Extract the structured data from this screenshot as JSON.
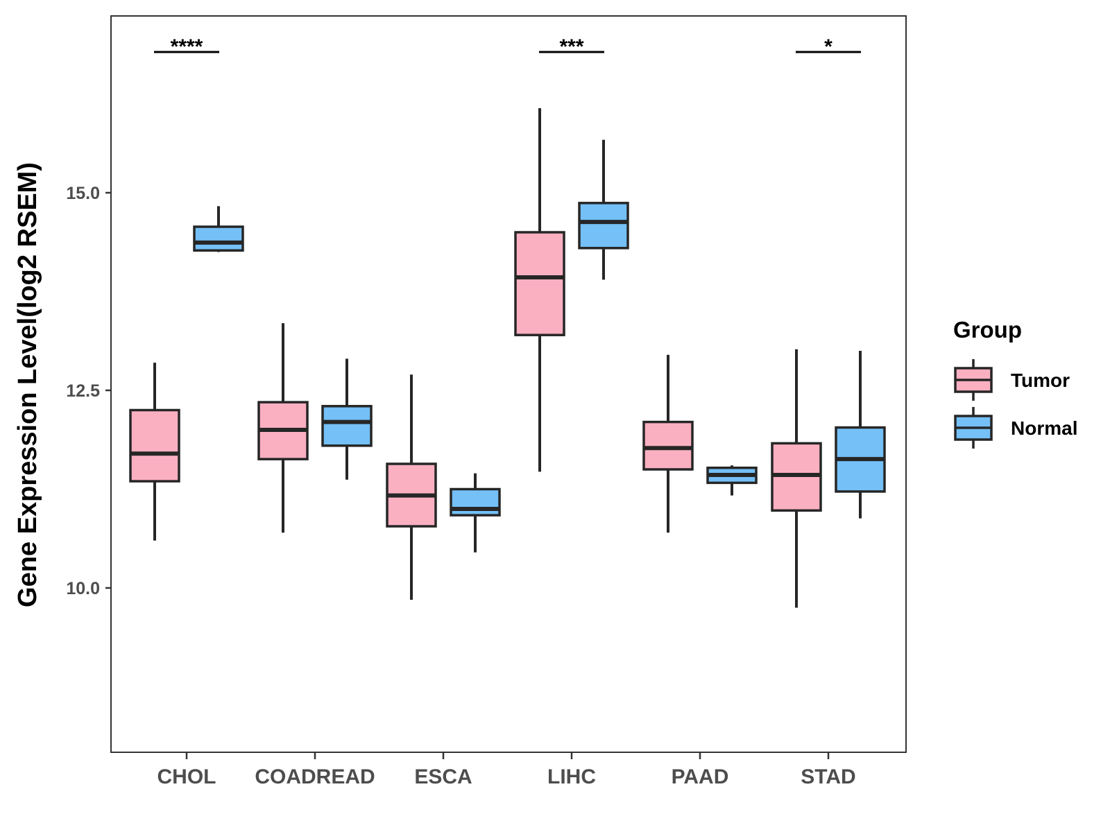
{
  "chart_data": {
    "type": "boxplot",
    "title": "",
    "xlabel": "",
    "ylabel": "Gene Expression Level(log2 RSEM)",
    "ylim": [
      8.0,
      17.3
    ],
    "yticks": [
      10.0,
      12.5,
      15.0
    ],
    "ytick_labels": [
      "10.0",
      "12.5",
      "15.0"
    ],
    "grid": false,
    "categories": [
      "CHOL",
      "COADREAD",
      "ESCA",
      "LIHC",
      "PAAD",
      "STAD"
    ],
    "legend": {
      "title": "Group",
      "position": "right",
      "entries": [
        "Tumor",
        "Normal"
      ]
    },
    "series": [
      {
        "name": "Tumor",
        "color": "#fbb0c2",
        "boxes": [
          {
            "category": "CHOL",
            "whisker_low": 10.6,
            "q1": 11.35,
            "median": 11.7,
            "q3": 12.25,
            "whisker_high": 12.85
          },
          {
            "category": "COADREAD",
            "whisker_low": 10.7,
            "q1": 11.63,
            "median": 12.0,
            "q3": 12.35,
            "whisker_high": 13.35
          },
          {
            "category": "ESCA",
            "whisker_low": 9.85,
            "q1": 10.78,
            "median": 11.17,
            "q3": 11.57,
            "whisker_high": 12.7
          },
          {
            "category": "LIHC",
            "whisker_low": 11.47,
            "q1": 13.2,
            "median": 13.93,
            "q3": 14.5,
            "whisker_high": 16.07
          },
          {
            "category": "PAAD",
            "whisker_low": 10.7,
            "q1": 11.5,
            "median": 11.77,
            "q3": 12.1,
            "whisker_high": 12.95
          },
          {
            "category": "STAD",
            "whisker_low": 9.75,
            "q1": 10.98,
            "median": 11.43,
            "q3": 11.83,
            "whisker_high": 13.02
          }
        ]
      },
      {
        "name": "Normal",
        "color": "#74c0f7",
        "boxes": [
          {
            "category": "CHOL",
            "whisker_low": 14.25,
            "q1": 14.27,
            "median": 14.37,
            "q3": 14.57,
            "whisker_high": 14.83
          },
          {
            "category": "COADREAD",
            "whisker_low": 11.37,
            "q1": 11.8,
            "median": 12.1,
            "q3": 12.3,
            "whisker_high": 12.9
          },
          {
            "category": "ESCA",
            "whisker_low": 10.45,
            "q1": 10.92,
            "median": 11.0,
            "q3": 11.25,
            "whisker_high": 11.45
          },
          {
            "category": "LIHC",
            "whisker_low": 13.9,
            "q1": 14.3,
            "median": 14.63,
            "q3": 14.87,
            "whisker_high": 15.67
          },
          {
            "category": "PAAD",
            "whisker_low": 11.17,
            "q1": 11.33,
            "median": 11.43,
            "q3": 11.52,
            "whisker_high": 11.55
          },
          {
            "category": "STAD",
            "whisker_low": 10.88,
            "q1": 11.22,
            "median": 11.63,
            "q3": 12.03,
            "whisker_high": 13.0
          }
        ]
      }
    ],
    "significance": [
      {
        "category": "CHOL",
        "label": "****"
      },
      {
        "category": "LIHC",
        "label": "***"
      },
      {
        "category": "STAD",
        "label": "*"
      }
    ]
  }
}
